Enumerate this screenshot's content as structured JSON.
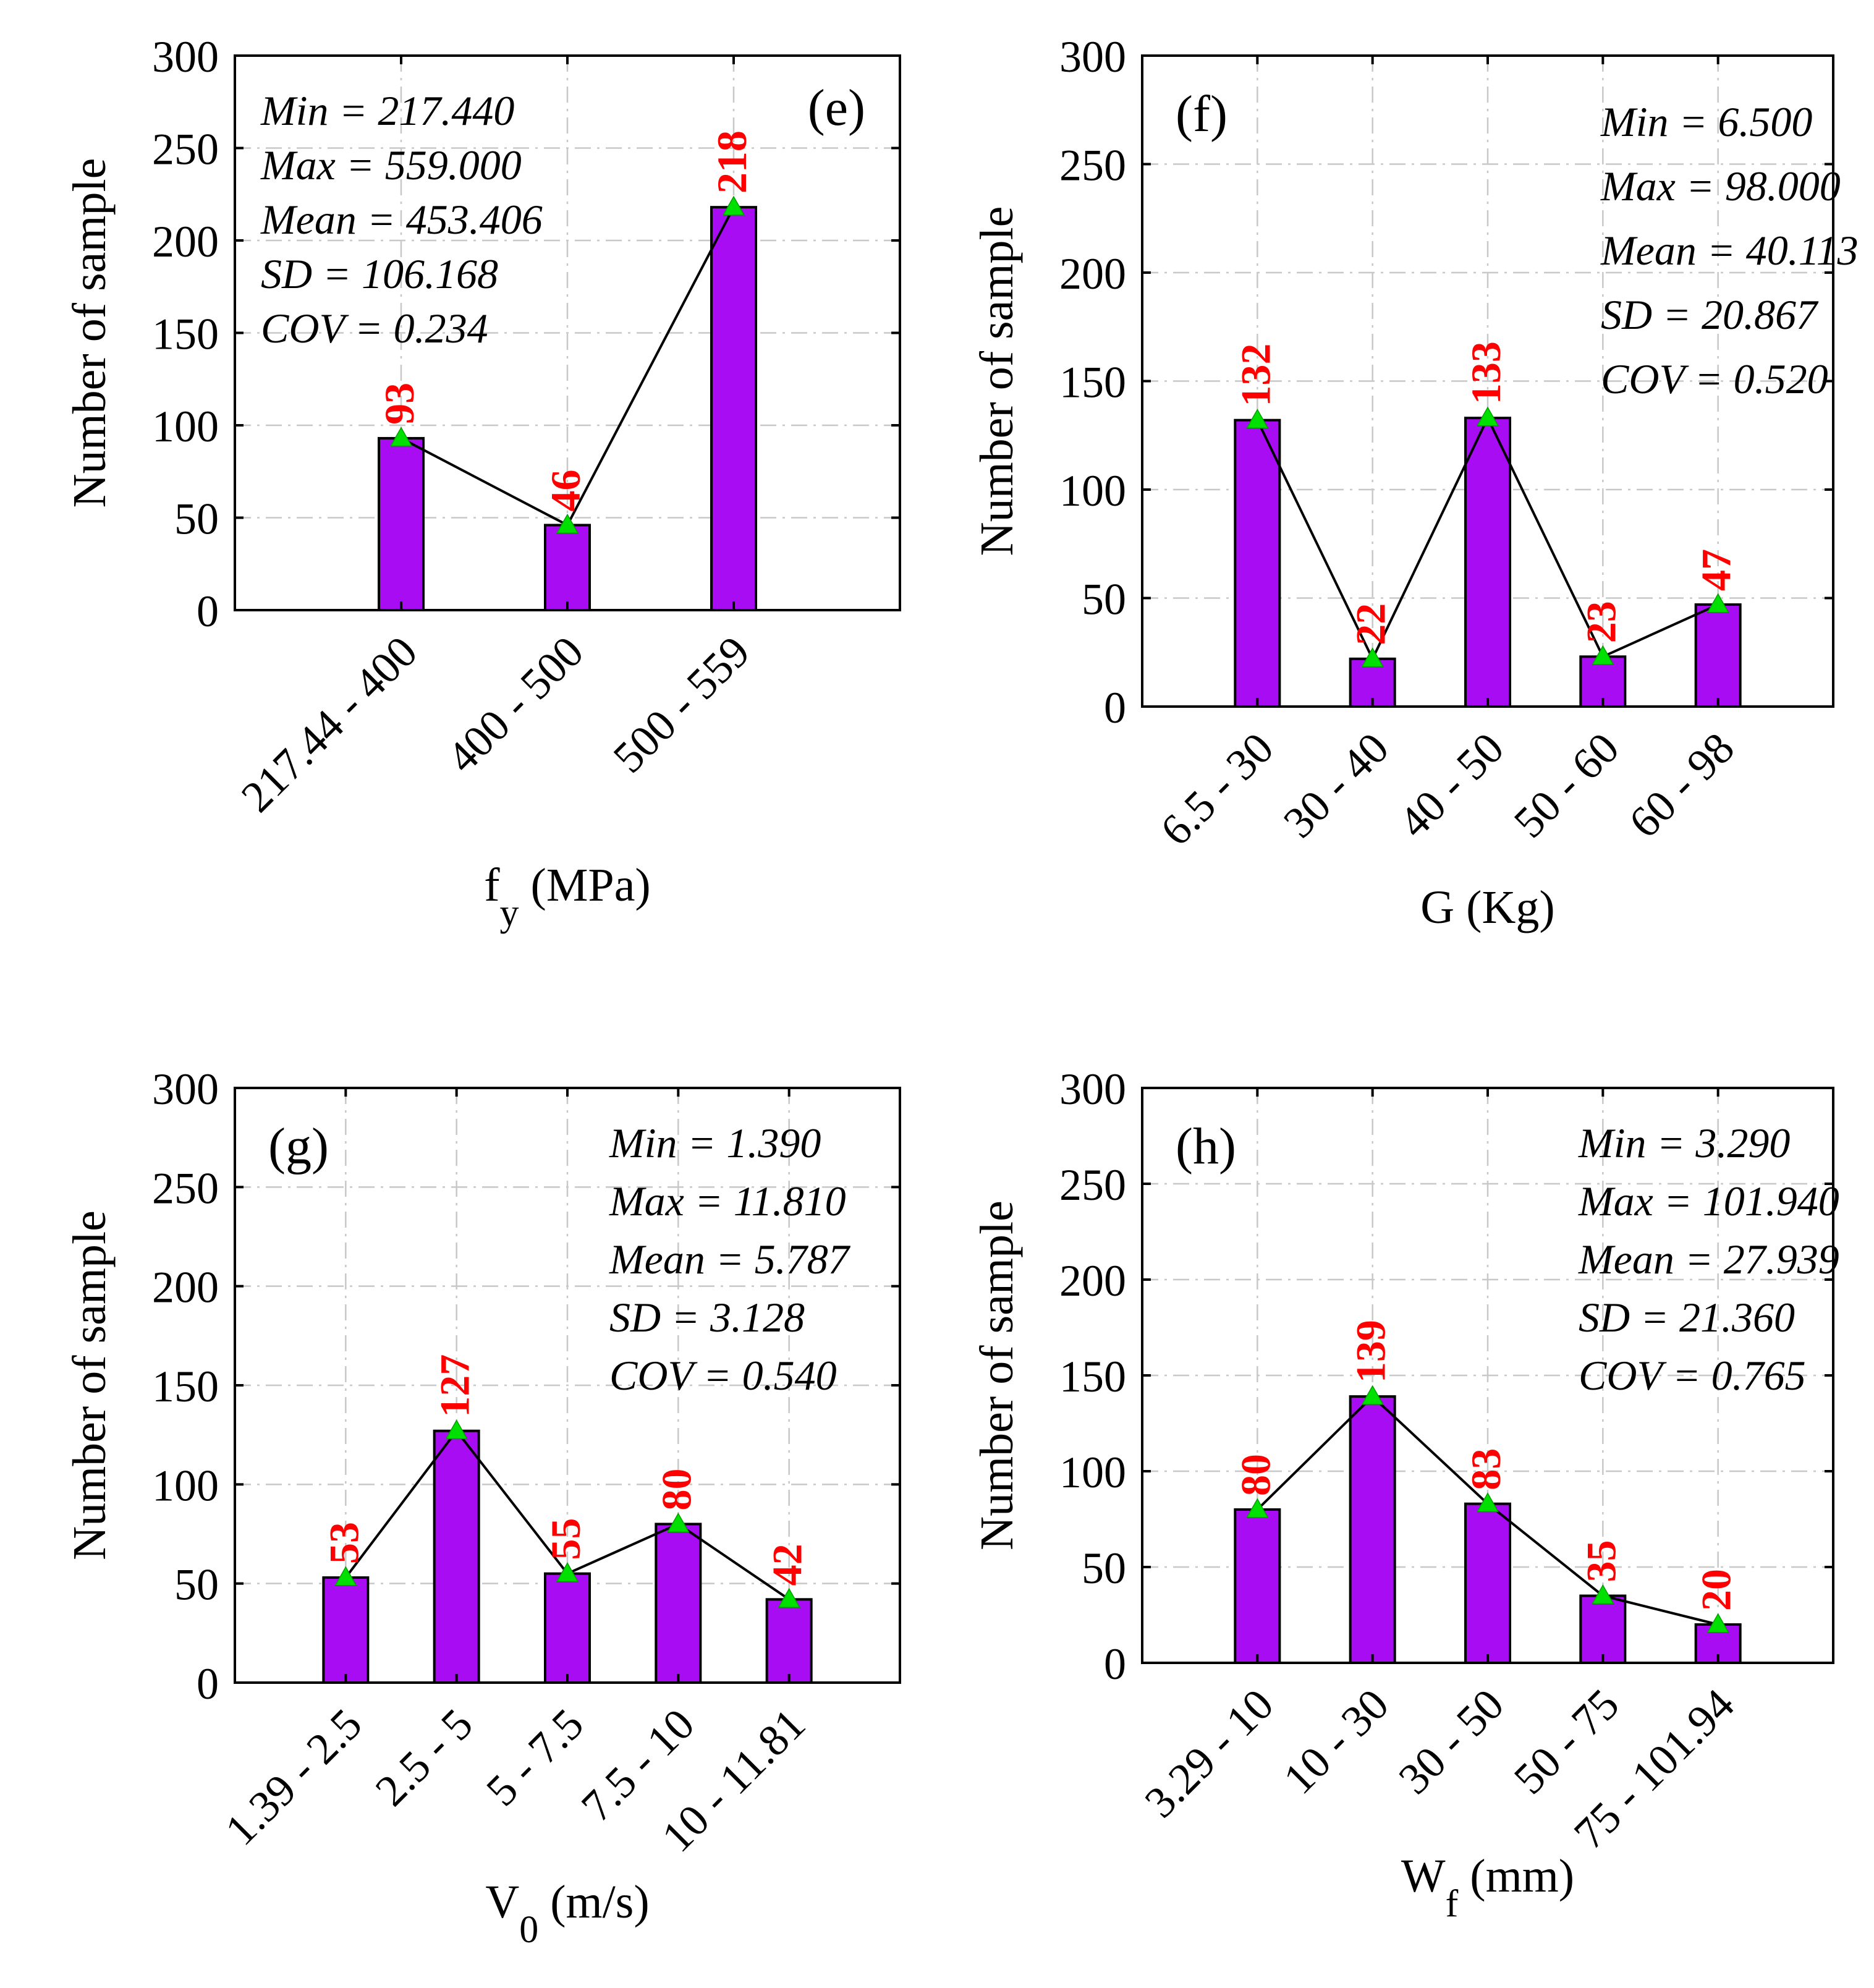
{
  "chart_data": [
    {
      "panel": "(e)",
      "type": "bar",
      "categories": [
        "217.44 - 400",
        "400 - 500",
        "500 - 559"
      ],
      "values": [
        93,
        46,
        218
      ],
      "ylim": [
        0,
        300
      ],
      "yticks": [
        "0",
        "50",
        "100",
        "150",
        "200",
        "250",
        "300"
      ],
      "ylabel": "Number of sample",
      "xlabel_main": "f",
      "xlabel_sub": "y",
      "xlabel_unit": " (MPa)",
      "stats": [
        "Min = 217.440",
        "Max = 559.000",
        "Mean = 453.406",
        "SD = 106.168",
        "COV = 0.234"
      ],
      "stats_position": "top-left",
      "panel_label_position": "top-right",
      "grid": true
    },
    {
      "panel": "(f)",
      "type": "bar",
      "categories": [
        "6.5 - 30",
        "30 - 40",
        "40 - 50",
        "50 - 60",
        "60 - 98"
      ],
      "values": [
        132,
        22,
        133,
        23,
        47
      ],
      "ylim": [
        0,
        300
      ],
      "yticks": [
        "0",
        "50",
        "100",
        "150",
        "200",
        "250",
        "300"
      ],
      "ylabel": "Number of sample",
      "xlabel_main": "G (Kg)",
      "xlabel_sub": "",
      "xlabel_unit": "",
      "stats": [
        "Min = 6.500",
        "Max = 98.000",
        "Mean = 40.113",
        "SD = 20.867",
        "COV = 0.520"
      ],
      "stats_position": "top-right",
      "panel_label_position": "top-left",
      "grid": true
    },
    {
      "panel": "(g)",
      "type": "bar",
      "categories": [
        "1.39 - 2.5",
        "2.5 - 5",
        "5 - 7.5",
        "7.5 - 10",
        "10 - 11.81"
      ],
      "values": [
        53,
        127,
        55,
        80,
        42
      ],
      "ylim": [
        0,
        300
      ],
      "yticks": [
        "0",
        "50",
        "100",
        "150",
        "200",
        "250",
        "300"
      ],
      "ylabel": "Number of sample",
      "xlabel_main": "V",
      "xlabel_sub": "0",
      "xlabel_unit": " (m/s)",
      "stats": [
        "Min = 1.390",
        "Max = 11.810",
        "Mean = 5.787",
        "SD = 3.128",
        "COV = 0.540"
      ],
      "stats_position": "top-right",
      "panel_label_position": "top-left",
      "grid": true
    },
    {
      "panel": "(h)",
      "type": "bar",
      "categories": [
        "3.29 - 10",
        "10 - 30",
        "30 - 50",
        "50 - 75",
        "75 - 101.94"
      ],
      "values": [
        80,
        139,
        83,
        35,
        20
      ],
      "ylim": [
        0,
        300
      ],
      "yticks": [
        "0",
        "50",
        "100",
        "150",
        "200",
        "250",
        "300"
      ],
      "ylabel": "Number of sample",
      "xlabel_main": "W",
      "xlabel_sub": "f",
      "xlabel_unit": " (mm)",
      "stats": [
        "Min = 3.290",
        "Max = 101.940",
        "Mean = 27.939",
        "SD = 21.360",
        "COV = 0.765"
      ],
      "stats_position": "top-right",
      "panel_label_position": "top-left",
      "grid": true
    }
  ],
  "colors": {
    "bar_fill": "#a80cf2",
    "bar_edge": "#000000",
    "value_label": "#ff0000",
    "marker": "#00e000",
    "line": "#000000",
    "grid": "#c8c8c8"
  }
}
